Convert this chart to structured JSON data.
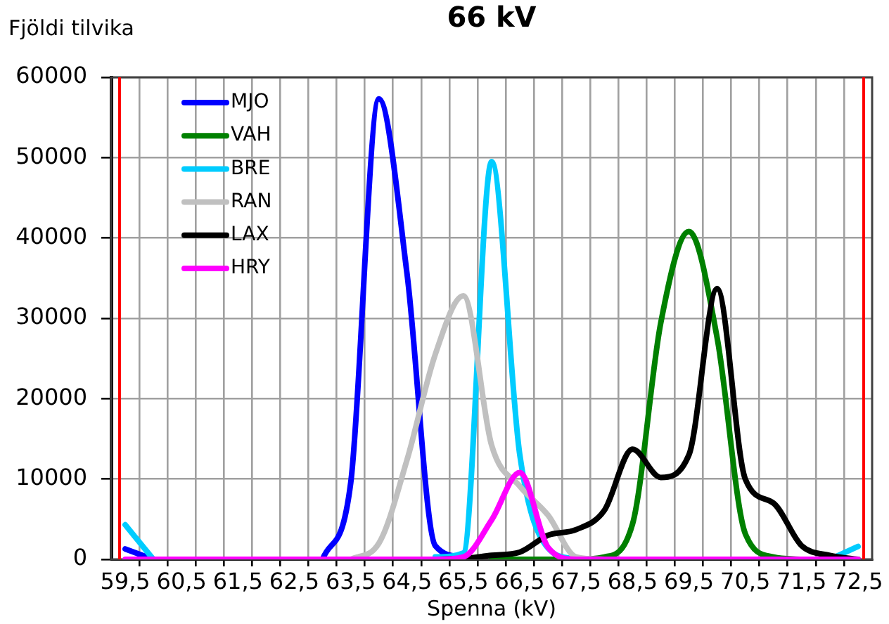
{
  "chart_data": {
    "type": "line",
    "title": "66 kV",
    "xlabel": "Spenna (kV)",
    "ylabel": "Fjöldi tilvika",
    "x": [
      59.5,
      60,
      60.5,
      61,
      61.5,
      62,
      62.5,
      63,
      63.5,
      64,
      64.5,
      65,
      65.5,
      66,
      66.5,
      67,
      67.5,
      68,
      68.5,
      69,
      69.5,
      70,
      70.5,
      71,
      71.5,
      72,
      72.5
    ],
    "xlim": [
      59.25,
      72.75
    ],
    "xticks": [
      {
        "value": 59.5,
        "label": "59,5"
      },
      {
        "value": 59.75,
        "label": null
      },
      {
        "value": 60.25,
        "label": null
      },
      {
        "value": 60.5,
        "label": "60,5"
      },
      {
        "value": 60.75,
        "label": null
      },
      {
        "value": 61.25,
        "label": null
      },
      {
        "value": 61.5,
        "label": "61,5"
      },
      {
        "value": 61.75,
        "label": null
      },
      {
        "value": 62.25,
        "label": null
      },
      {
        "value": 62.5,
        "label": "62,5"
      },
      {
        "value": 62.75,
        "label": null
      },
      {
        "value": 63.25,
        "label": null
      },
      {
        "value": 63.5,
        "label": "63,5"
      },
      {
        "value": 63.75,
        "label": null
      },
      {
        "value": 64.25,
        "label": null
      },
      {
        "value": 64.5,
        "label": "64,5"
      },
      {
        "value": 64.75,
        "label": null
      },
      {
        "value": 65.25,
        "label": null
      },
      {
        "value": 65.5,
        "label": "65,5"
      },
      {
        "value": 65.75,
        "label": null
      },
      {
        "value": 66.25,
        "label": null
      },
      {
        "value": 66.5,
        "label": "66,5"
      },
      {
        "value": 66.75,
        "label": null
      },
      {
        "value": 67.25,
        "label": null
      },
      {
        "value": 67.5,
        "label": "67,5"
      },
      {
        "value": 67.75,
        "label": null
      },
      {
        "value": 68.25,
        "label": null
      },
      {
        "value": 68.5,
        "label": "68,5"
      },
      {
        "value": 68.75,
        "label": null
      },
      {
        "value": 69.25,
        "label": null
      },
      {
        "value": 69.5,
        "label": "69,5"
      },
      {
        "value": 69.75,
        "label": null
      },
      {
        "value": 70.25,
        "label": null
      },
      {
        "value": 70.5,
        "label": "70,5"
      },
      {
        "value": 70.75,
        "label": null
      },
      {
        "value": 71.25,
        "label": null
      },
      {
        "value": 71.5,
        "label": "71,5"
      },
      {
        "value": 71.75,
        "label": null
      },
      {
        "value": 72.25,
        "label": null
      },
      {
        "value": 72.5,
        "label": "72,5"
      }
    ],
    "ylim": [
      0,
      60000
    ],
    "yticks": [
      0,
      10000,
      20000,
      30000,
      40000,
      50000,
      60000
    ],
    "grid": true,
    "legend": "top left",
    "series": [
      {
        "name": "MJO",
        "color": "#0000ff",
        "values": [
          1300,
          0,
          null,
          null,
          null,
          null,
          null,
          0,
          9500,
          57300,
          35500,
          1700,
          300,
          null,
          null,
          null,
          null,
          null,
          null,
          null,
          null,
          null,
          null,
          null,
          null,
          null,
          null
        ]
      },
      {
        "name": "VAH",
        "color": "#008000",
        "values": [
          null,
          null,
          null,
          null,
          null,
          null,
          null,
          null,
          null,
          null,
          null,
          null,
          null,
          0,
          0,
          0,
          0,
          300,
          4400,
          29400,
          40800,
          27600,
          3200,
          300,
          0,
          null,
          null
        ]
      },
      {
        "name": "BRE",
        "color": "#00ccff",
        "values": [
          4300,
          0,
          null,
          null,
          null,
          null,
          null,
          null,
          null,
          null,
          null,
          300,
          800,
          49500,
          13000,
          1400,
          0,
          null,
          null,
          null,
          null,
          null,
          null,
          null,
          null,
          0,
          1600
        ]
      },
      {
        "name": "RAN",
        "color": "#c0c0c0",
        "values": [
          null,
          null,
          null,
          null,
          null,
          null,
          null,
          null,
          0,
          2000,
          12400,
          25500,
          32800,
          14200,
          9100,
          5500,
          300,
          0,
          null,
          null,
          null,
          null,
          null,
          null,
          null,
          null,
          null
        ]
      },
      {
        "name": "LAX",
        "color": "#000000",
        "values": [
          null,
          null,
          null,
          null,
          null,
          null,
          null,
          null,
          null,
          null,
          null,
          0,
          100,
          500,
          900,
          3000,
          3700,
          6100,
          13700,
          10200,
          13000,
          33700,
          10000,
          7000,
          1700,
          500,
          0
        ]
      },
      {
        "name": "HRY",
        "color": "#ff00ff",
        "values": [
          0,
          0,
          0,
          0,
          0,
          0,
          0,
          0,
          0,
          0,
          0,
          0,
          300,
          4900,
          10800,
          1500,
          0,
          0,
          0,
          0,
          0,
          0,
          0,
          0,
          0,
          0,
          0
        ]
      }
    ],
    "ref_lines": [
      {
        "axis": "x",
        "value": 59.4,
        "color": "#ff0000"
      },
      {
        "axis": "x",
        "value": 72.6,
        "color": "#ff0000"
      }
    ]
  }
}
